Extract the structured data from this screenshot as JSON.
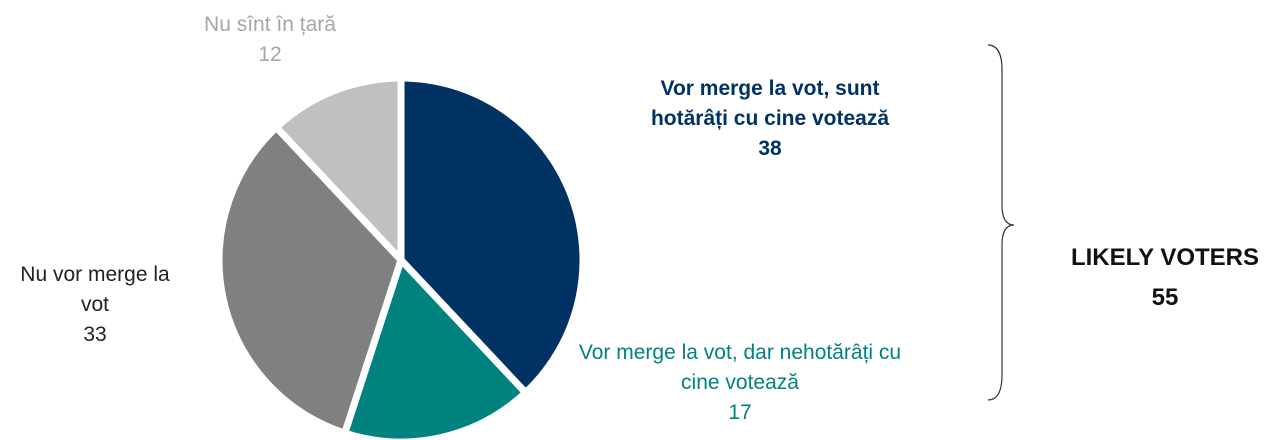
{
  "chart_data": {
    "type": "pie",
    "categories": [
      "Vor merge la vot, sunt hotărâți cu cine votează",
      "Vor merge la vot, dar nehotărâți cu cine votează",
      "Nu vor merge la vot",
      "Nu sînt în țară"
    ],
    "values": [
      38,
      17,
      33,
      12
    ],
    "colors": [
      "#003363",
      "#00827f",
      "#808080",
      "#c0c0c0"
    ],
    "annotation": {
      "text": "LIKELY VOTERS",
      "value": 55
    }
  }
}
